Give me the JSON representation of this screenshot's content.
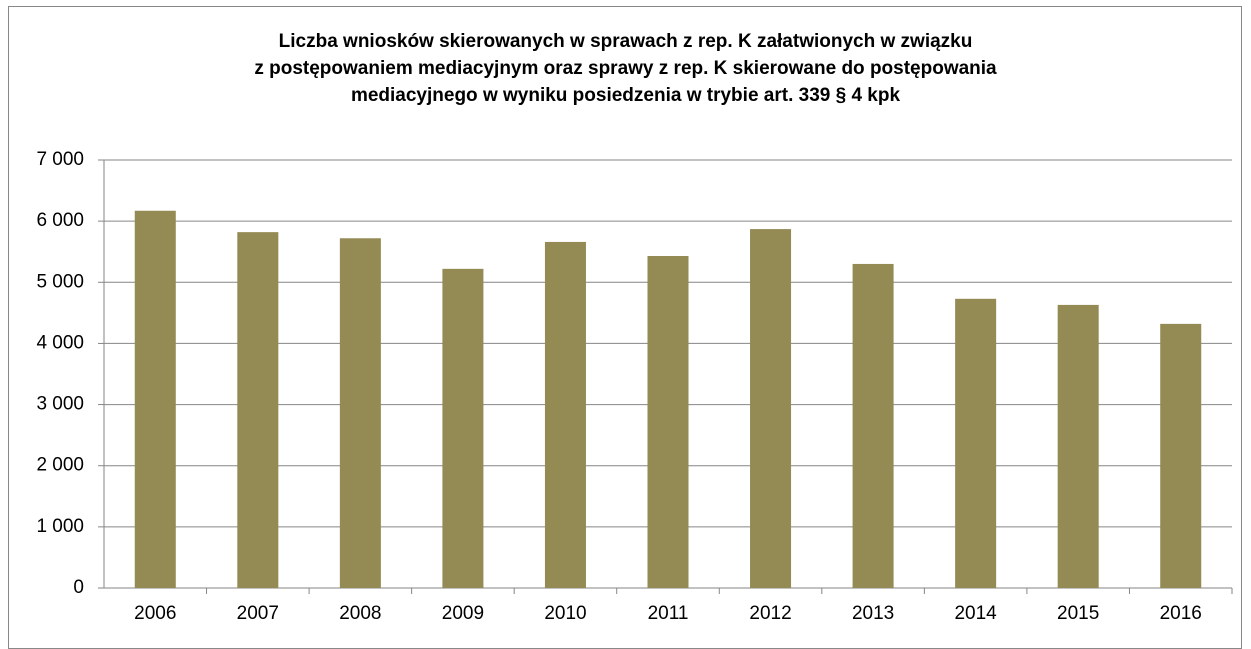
{
  "chart_data": {
    "type": "bar",
    "title": "Liczba wniosków skierowanych w sprawach z rep. K załatwionych w związku\nz postępowaniem mediacyjnym oraz sprawy z rep. K skierowane do postępowania\nmediacyjnego w wyniku posiedzenia w trybie art. 339 § 4 kpk",
    "categories": [
      "2006",
      "2007",
      "2008",
      "2009",
      "2010",
      "2011",
      "2012",
      "2013",
      "2014",
      "2015",
      "2016"
    ],
    "values": [
      6170,
      5820,
      5720,
      5220,
      5660,
      5430,
      5870,
      5300,
      4730,
      4630,
      4320
    ],
    "color": "#948a54",
    "ylim": [
      0,
      7000
    ],
    "yticks": [
      0,
      {
        "value": 1000,
        "label": "1 000"
      },
      {
        "value": 2000,
        "label": "2 000"
      },
      {
        "value": 3000,
        "label": "3 000"
      },
      {
        "value": 4000,
        "label": "4 000"
      },
      {
        "value": 5000,
        "label": "5 000"
      },
      {
        "value": 6000,
        "label": "6 000"
      },
      {
        "value": 7000,
        "label": "7 000"
      }
    ],
    "grid": true
  }
}
